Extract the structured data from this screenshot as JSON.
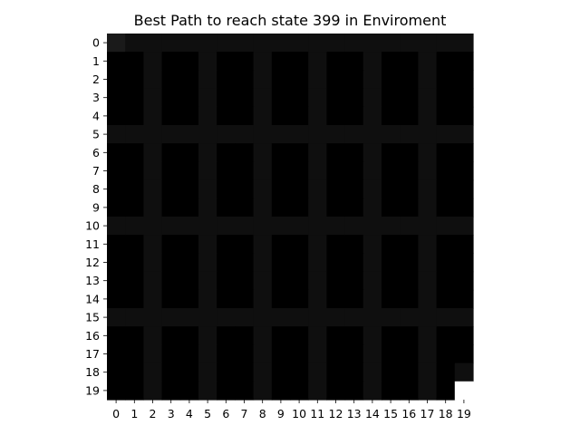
{
  "chart_data": {
    "type": "heatmap",
    "title": "Best Path to reach state 399 in Enviroment",
    "x_ticks": [
      "0",
      "1",
      "2",
      "3",
      "4",
      "5",
      "6",
      "7",
      "8",
      "9",
      "10",
      "11",
      "12",
      "13",
      "14",
      "15",
      "16",
      "17",
      "18",
      "19"
    ],
    "y_ticks": [
      "0",
      "1",
      "2",
      "3",
      "4",
      "5",
      "6",
      "7",
      "8",
      "9",
      "10",
      "11",
      "12",
      "13",
      "14",
      "15",
      "16",
      "17",
      "18",
      "19"
    ],
    "grid": false,
    "colormap": "gray",
    "value_range": [
      0,
      1
    ],
    "background_value": 0.0,
    "corridor_value": 0.06,
    "start_value": 0.1,
    "goal_value": 1.0,
    "corridor_rows": [
      0,
      5,
      10,
      15
    ],
    "corridor_cols": [
      2,
      5,
      8,
      11,
      14,
      17
    ],
    "path_cells": [
      [
        0,
        0
      ],
      [
        18,
        19
      ]
    ],
    "start_cell": [
      0,
      0
    ],
    "goal_cell": [
      19,
      19
    ]
  }
}
